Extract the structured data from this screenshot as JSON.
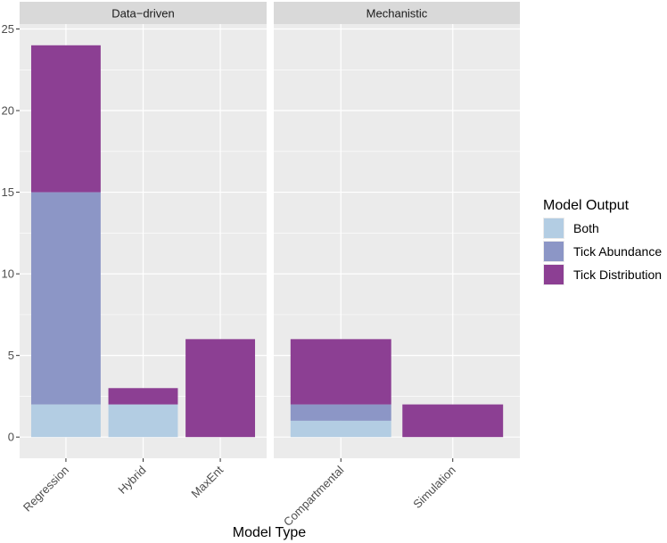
{
  "chart_data": {
    "type": "bar",
    "stacked": true,
    "xlabel": "Model Type",
    "ylabel": "",
    "ylim": [
      -1.3,
      25.3
    ],
    "yticks": [
      0,
      5,
      10,
      15,
      20,
      25
    ],
    "facets": [
      {
        "name": "Data−driven",
        "categories": [
          "Regression",
          "Hybrid",
          "MaxEnt"
        ],
        "series": [
          {
            "name": "Both",
            "values": [
              2,
              2,
              0
            ]
          },
          {
            "name": "Tick Abundance",
            "values": [
              13,
              0,
              0
            ]
          },
          {
            "name": "Tick Distribution",
            "values": [
              9,
              1,
              6
            ]
          }
        ]
      },
      {
        "name": "Mechanistic",
        "categories": [
          "Compartmental",
          "Simulation"
        ],
        "series": [
          {
            "name": "Both",
            "values": [
              1,
              0
            ]
          },
          {
            "name": "Tick Abundance",
            "values": [
              1,
              0
            ]
          },
          {
            "name": "Tick Distribution",
            "values": [
              4,
              2
            ]
          }
        ]
      }
    ],
    "legend": {
      "title": "Model Output",
      "position": "right",
      "entries": [
        "Both",
        "Tick Abundance",
        "Tick Distribution"
      ]
    },
    "colors": {
      "Both": "#b3cde3",
      "Tick Abundance": "#8c96c6",
      "Tick Distribution": "#8c3f93",
      "panel": "#ebebeb",
      "strip": "#d9d9d9",
      "grid": "#ffffff"
    }
  }
}
